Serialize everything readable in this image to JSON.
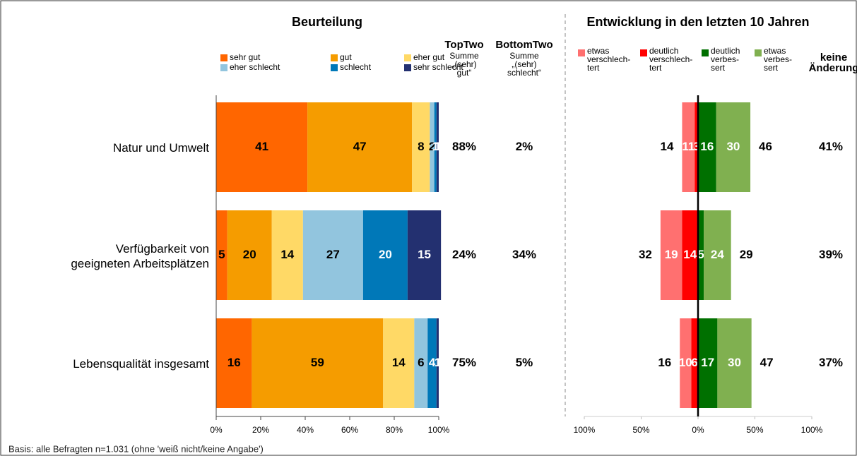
{
  "chart_data": [
    {
      "type": "stacked_bar",
      "title": "Beurteilung",
      "categories": [
        "Natur und Umwelt",
        "Verfügbarkeit von\ngeeigneten Arbeitsplätzen",
        "Lebensqualität insgesamt"
      ],
      "series": [
        {
          "name": "sehr gut",
          "color": "#ff6600",
          "label_color": "#000000",
          "values": [
            41,
            5,
            16
          ]
        },
        {
          "name": "gut",
          "color": "#f59c00",
          "label_color": "#000000",
          "values": [
            47,
            20,
            59
          ]
        },
        {
          "name": "eher gut",
          "color": "#ffd966",
          "label_color": "#000000",
          "values": [
            8,
            14,
            14
          ]
        },
        {
          "name": "eher schlecht",
          "color": "#92c5de",
          "label_color": "#000000",
          "values": [
            2,
            27,
            6
          ]
        },
        {
          "name": "schlecht",
          "color": "#0078b8",
          "label_color": "#ffffff",
          "values": [
            1,
            20,
            4
          ]
        },
        {
          "name": "sehr schlecht",
          "color": "#233070",
          "label_color": "#ffffff",
          "values": [
            1,
            15,
            1
          ]
        }
      ],
      "xlim": [
        0,
        100
      ],
      "xticks": [
        {
          "value": 0,
          "label": "0%"
        },
        {
          "value": 20,
          "label": "20%"
        },
        {
          "value": 40,
          "label": "40%"
        },
        {
          "value": 60,
          "label": "60%"
        },
        {
          "value": 80,
          "label": "80%"
        },
        {
          "value": 100,
          "label": "100%"
        }
      ],
      "columns": [
        {
          "title": "TopTwo",
          "subtitle": "Summe\n„(sehr)\ngut“",
          "values": [
            88,
            24,
            75
          ],
          "value_labels": [
            "88%",
            "24%",
            "75%"
          ]
        },
        {
          "title": "BottomTwo",
          "subtitle": "Summe\n„(sehr)\nschlecht“",
          "values": [
            2,
            34,
            5
          ],
          "value_labels": [
            "2%",
            "34%",
            "5%"
          ]
        }
      ]
    },
    {
      "type": "diverging_bar",
      "title": "Entwicklung in den letzten 10 Jahren",
      "series": [
        {
          "name": "etwas\nverschlech-\ntert",
          "color": "#ff7070",
          "label_color": "#ffffff",
          "values": [
            -11,
            -19,
            -10
          ],
          "value_labels": [
            "11",
            "19",
            "10"
          ]
        },
        {
          "name": "deutlich\nverschlech-\ntert",
          "color": "#ff0000",
          "label_color": "#ffffff",
          "values": [
            -3,
            -14,
            -6
          ],
          "value_labels": [
            "3",
            "14",
            "6"
          ]
        },
        {
          "name": "deutlich\nverbes-\nsert",
          "color": "#007000",
          "label_color": "#ffffff",
          "values": [
            16,
            5,
            17
          ]
        },
        {
          "name": "etwas\nverbes-\nsert",
          "color": "#80b050",
          "label_color": "#ffffff",
          "values": [
            30,
            24,
            30
          ]
        }
      ],
      "totals_negative": [
        14,
        32,
        16
      ],
      "totals_positive": [
        46,
        29,
        47
      ],
      "xlim": [
        -100,
        100
      ],
      "xticks": [
        {
          "value": -100,
          "label": "100%"
        },
        {
          "value": -50,
          "label": "50%"
        },
        {
          "value": 0,
          "label": "0%"
        },
        {
          "value": 50,
          "label": "50%"
        },
        {
          "value": 100,
          "label": "100%"
        }
      ],
      "columns": [
        {
          "title": "keine\nÄnderung",
          "values": [
            41,
            39,
            37
          ],
          "value_labels": [
            "41%",
            "39%",
            "37%"
          ]
        }
      ]
    }
  ],
  "footnote": "Basis: alle Befragten n=1.031 (ohne 'weiß nicht/keine Angabe')"
}
